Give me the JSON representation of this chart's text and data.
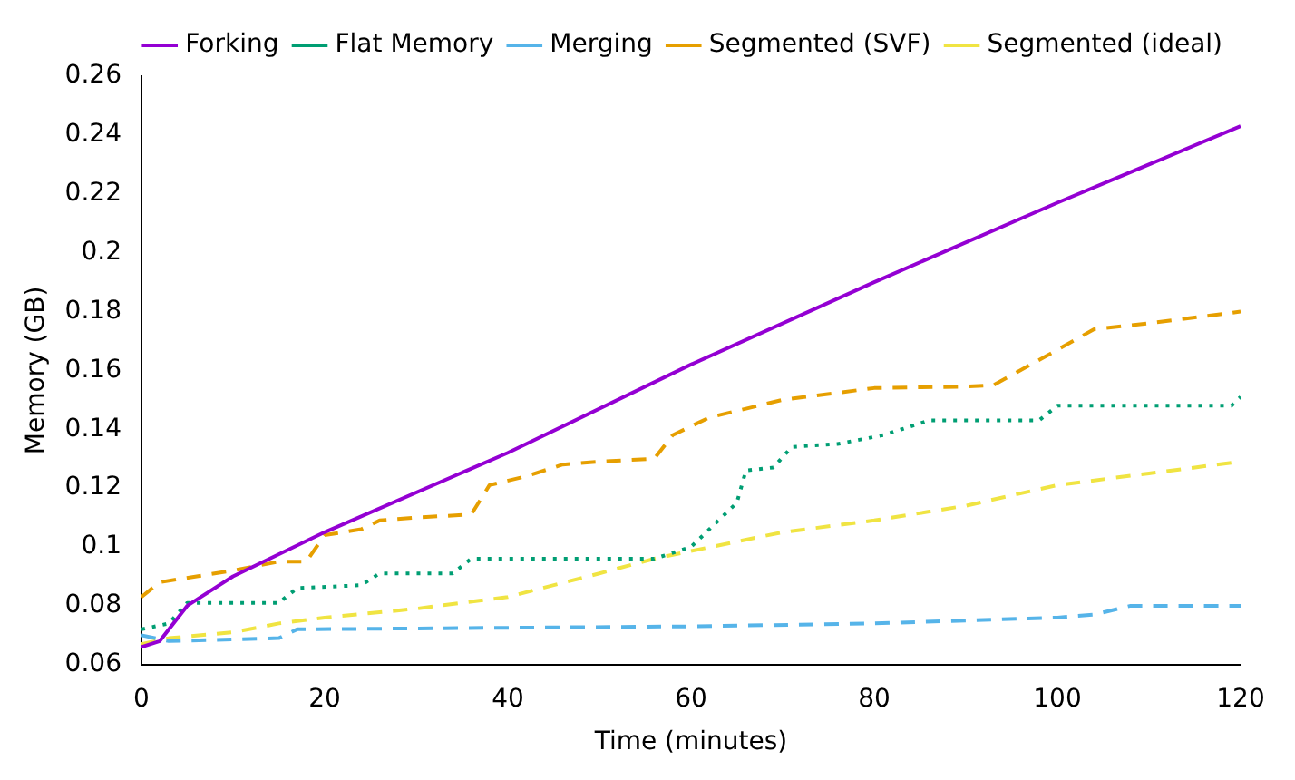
{
  "chart_data": {
    "type": "line",
    "xlabel": "Time (minutes)",
    "ylabel": "Memory (GB)",
    "xlim": [
      0,
      120
    ],
    "xticks": [
      0,
      20,
      40,
      60,
      80,
      100,
      120
    ],
    "ylim": [
      0.06,
      0.26
    ],
    "yticks": [
      0.06,
      0.08,
      0.1,
      0.12,
      0.14,
      0.16,
      0.18,
      0.2,
      0.22,
      0.24,
      0.26
    ],
    "grid": false,
    "legend": "top",
    "marker": "none",
    "series": [
      {
        "name": "Forking",
        "color": "#9400d3",
        "line_style": "solid",
        "x": [
          0,
          2,
          5,
          10,
          20,
          40,
          60,
          80,
          100,
          120
        ],
        "values": [
          0.066,
          0.068,
          0.08,
          0.09,
          0.105,
          0.132,
          0.162,
          0.19,
          0.217,
          0.243
        ]
      },
      {
        "name": "Flat Memory",
        "color": "#009e73",
        "line_style": "dotted",
        "x": [
          0,
          3,
          5,
          15,
          17,
          24,
          26,
          34,
          36,
          56,
          58,
          60,
          65,
          66,
          69,
          71,
          76,
          81,
          86,
          98,
          100,
          119,
          120
        ],
        "values": [
          0.072,
          0.074,
          0.081,
          0.081,
          0.086,
          0.087,
          0.091,
          0.091,
          0.096,
          0.096,
          0.098,
          0.1,
          0.115,
          0.126,
          0.127,
          0.134,
          0.135,
          0.138,
          0.143,
          0.143,
          0.148,
          0.148,
          0.151
        ]
      },
      {
        "name": "Merging",
        "color": "#56b4e9",
        "line_style": "dashed",
        "x": [
          0,
          3,
          15,
          17,
          60,
          80,
          100,
          104,
          108,
          120
        ],
        "values": [
          0.07,
          0.068,
          0.069,
          0.072,
          0.073,
          0.074,
          0.076,
          0.077,
          0.08,
          0.08
        ]
      },
      {
        "name": "Segmented (SVF)",
        "color": "#e69f00",
        "line_style": "dashed",
        "x": [
          0,
          2,
          10,
          15,
          18,
          20,
          24,
          26,
          30,
          36,
          38,
          42,
          46,
          50,
          56,
          58,
          62,
          66,
          70,
          80,
          90,
          93,
          100,
          104,
          110,
          120
        ],
        "values": [
          0.083,
          0.088,
          0.092,
          0.095,
          0.095,
          0.104,
          0.106,
          0.109,
          0.11,
          0.111,
          0.121,
          0.124,
          0.128,
          0.129,
          0.13,
          0.138,
          0.144,
          0.147,
          0.15,
          0.154,
          0.1545,
          0.155,
          0.167,
          0.174,
          0.176,
          0.18
        ]
      },
      {
        "name": "Segmented (ideal)",
        "color": "#f0e442",
        "line_style": "dashed",
        "x": [
          0,
          3,
          10,
          15,
          20,
          30,
          40,
          50,
          56,
          60,
          70,
          80,
          90,
          100,
          110,
          120
        ],
        "values": [
          0.067,
          0.069,
          0.071,
          0.074,
          0.076,
          0.079,
          0.083,
          0.091,
          0.096,
          0.0986,
          0.105,
          0.109,
          0.114,
          0.121,
          0.125,
          0.129
        ]
      }
    ]
  }
}
